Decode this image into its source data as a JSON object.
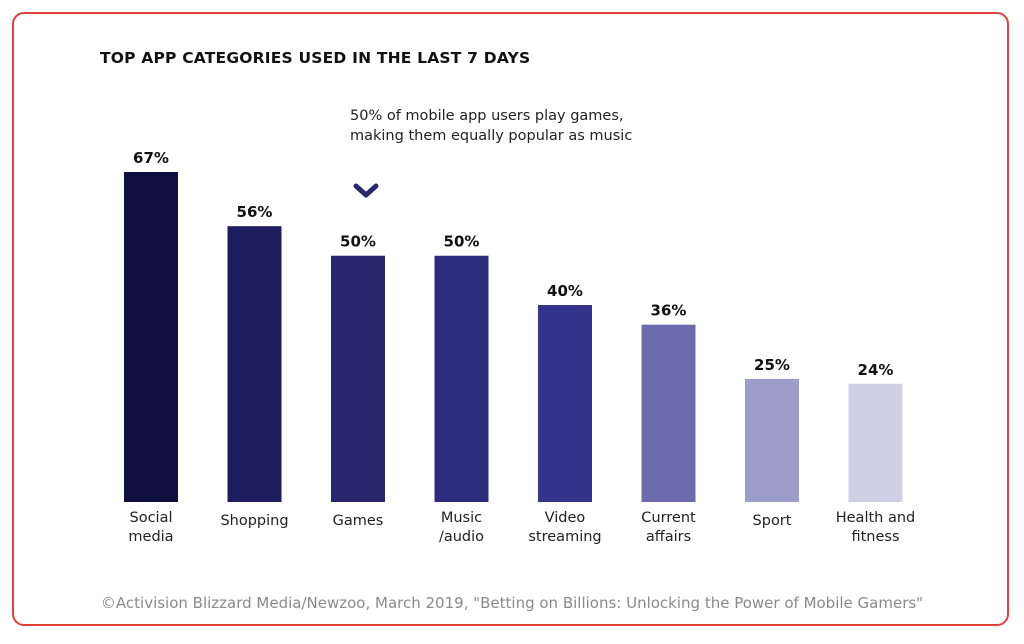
{
  "chart_data": {
    "type": "bar",
    "title": "TOP APP CATEGORIES USED IN THE LAST 7 DAYS",
    "categories": [
      "Social\nmedia",
      "Shopping",
      "Games",
      "Music\n/audio",
      "Video\nstreaming",
      "Current\naffairs",
      "Sport",
      "Health and\nfitness"
    ],
    "values": [
      67,
      56,
      50,
      50,
      40,
      36,
      25,
      24
    ],
    "value_labels": [
      "67%",
      "56%",
      "50%",
      "50%",
      "40%",
      "36%",
      "25%",
      "24%"
    ],
    "colors": [
      "#0f0f40",
      "#1e1e5e",
      "#28286f",
      "#2c2c7c",
      "#34348c",
      "#6b6bae",
      "#9d9dcc",
      "#cfcfe6"
    ],
    "annotation": "50% of mobile app users play games, making them equally popular as music",
    "annotation_icon": "chevron-down-icon",
    "ylim": [
      0,
      67
    ],
    "grid": false,
    "legend": false
  },
  "source": "©Activision Blizzard Media/Newzoo, March 2019, \"Betting on Billions: Unlocking the Power of Mobile Gamers\"",
  "colors": {
    "frame_border": "#e0403a",
    "source_text": "#8a8a8a",
    "accent": "#28286f"
  }
}
